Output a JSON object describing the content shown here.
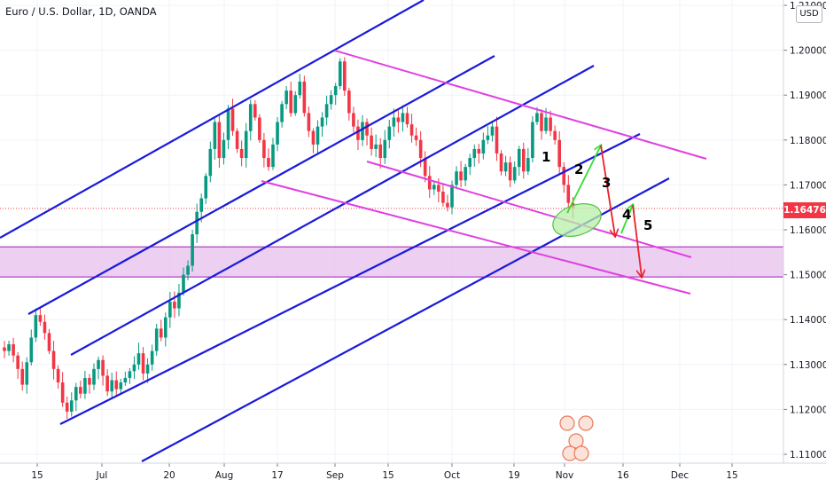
{
  "header": {
    "title": "Euro / U.S. Dollar, 1D, OANDA",
    "currency_button": "USD"
  },
  "last_price": "1.16476",
  "colors": {
    "up": "#089981",
    "down": "#f23645",
    "channel_blue": "#1a1adb",
    "channel_magenta": "#e040e0",
    "zone_fill": "#e9c7ef",
    "zone_border": "#b040c0",
    "arrow_up": "#33dd33",
    "arrow_down": "#e8202a",
    "ellipse_fill": "#b8f0a8"
  },
  "annotations": {
    "wave_labels": [
      "1",
      "2",
      "3",
      "4",
      "5"
    ]
  },
  "chart_data": {
    "type": "candlestick",
    "symbol": "Euro / U.S. Dollar",
    "timeframe": "1D",
    "source": "OANDA",
    "y_ticks": [
      "1.21000",
      "1.20000",
      "1.19000",
      "1.18000",
      "1.17000",
      "1.16000",
      "1.15000",
      "1.14000",
      "1.13000",
      "1.12000",
      "1.11000"
    ],
    "x_ticks": [
      "15",
      "Jul",
      "20",
      "Aug",
      "17",
      "Sep",
      "15",
      "Oct",
      "19",
      "Nov",
      "16",
      "Dec",
      "15"
    ],
    "ylim": [
      1.1085,
      1.2105
    ],
    "support_zone": [
      1.1495,
      1.1562
    ],
    "closes": [
      1.133,
      1.1345,
      1.132,
      1.129,
      1.1255,
      1.1305,
      1.136,
      1.141,
      1.1395,
      1.137,
      1.133,
      1.129,
      1.126,
      1.1215,
      1.1195,
      1.122,
      1.125,
      1.1235,
      1.127,
      1.1255,
      1.129,
      1.131,
      1.1275,
      1.124,
      1.1265,
      1.1245,
      1.126,
      1.127,
      1.1285,
      1.13,
      1.1325,
      1.128,
      1.13,
      1.133,
      1.138,
      1.136,
      1.1405,
      1.144,
      1.1425,
      1.146,
      1.15,
      1.152,
      1.159,
      1.164,
      1.167,
      1.172,
      1.178,
      1.184,
      1.176,
      1.18,
      1.187,
      1.182,
      1.178,
      1.176,
      1.182,
      1.188,
      1.185,
      1.18,
      1.176,
      1.174,
      1.179,
      1.184,
      1.188,
      1.191,
      1.186,
      1.19,
      1.193,
      1.186,
      1.182,
      1.179,
      1.183,
      1.185,
      1.188,
      1.19,
      1.192,
      1.1975,
      1.191,
      1.186,
      1.183,
      1.18,
      1.184,
      1.181,
      1.178,
      1.179,
      1.176,
      1.18,
      1.183,
      1.185,
      1.184,
      1.186,
      1.1835,
      1.181,
      1.18,
      1.176,
      1.172,
      1.169,
      1.17,
      1.1685,
      1.166,
      1.165,
      1.17,
      1.173,
      1.171,
      1.174,
      1.176,
      1.178,
      1.177,
      1.18,
      1.181,
      1.183,
      1.177,
      1.173,
      1.175,
      1.171,
      1.174,
      1.178,
      1.173,
      1.176,
      1.184,
      1.186,
      1.182,
      1.185,
      1.182,
      1.18,
      1.174,
      1.17,
      1.166,
      1.1648
    ]
  }
}
